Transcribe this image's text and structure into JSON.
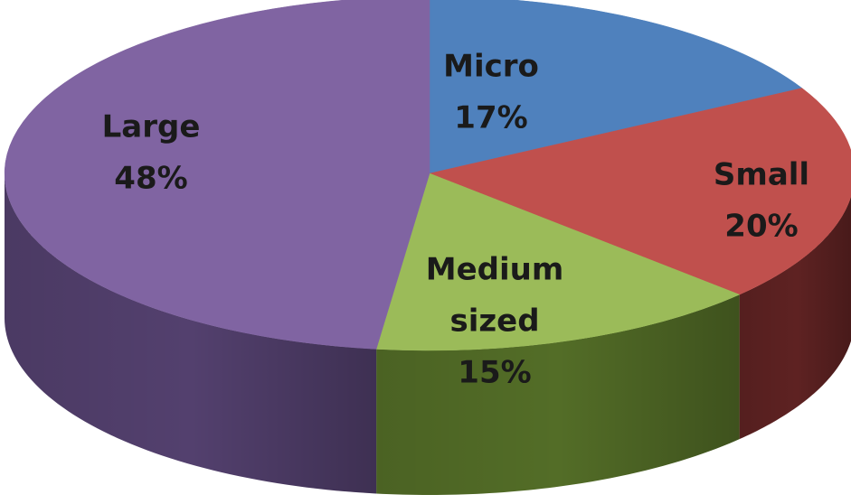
{
  "chart_data": {
    "type": "pie",
    "style": "3d",
    "title": "",
    "slices": [
      {
        "name": "Micro",
        "label_lines": [
          "Micro"
        ],
        "value": 17,
        "percent_label": "17%",
        "color": "#4f81bd",
        "side_color": "#34568a"
      },
      {
        "name": "Small",
        "label_lines": [
          "Small"
        ],
        "value": 20,
        "percent_label": "20%",
        "color": "#c0504d",
        "side_color": "#5e2222"
      },
      {
        "name": "Medium sized",
        "label_lines": [
          "Medium",
          "sized"
        ],
        "value": 15,
        "percent_label": "15%",
        "color": "#9bbb59",
        "side_color": "#536d27"
      },
      {
        "name": "Large",
        "label_lines": [
          "Large"
        ],
        "value": 48,
        "percent_label": "48%",
        "color": "#8064a2",
        "side_color": "#53406e"
      }
    ],
    "legend": "none",
    "data_labels": "category-and-percent"
  }
}
